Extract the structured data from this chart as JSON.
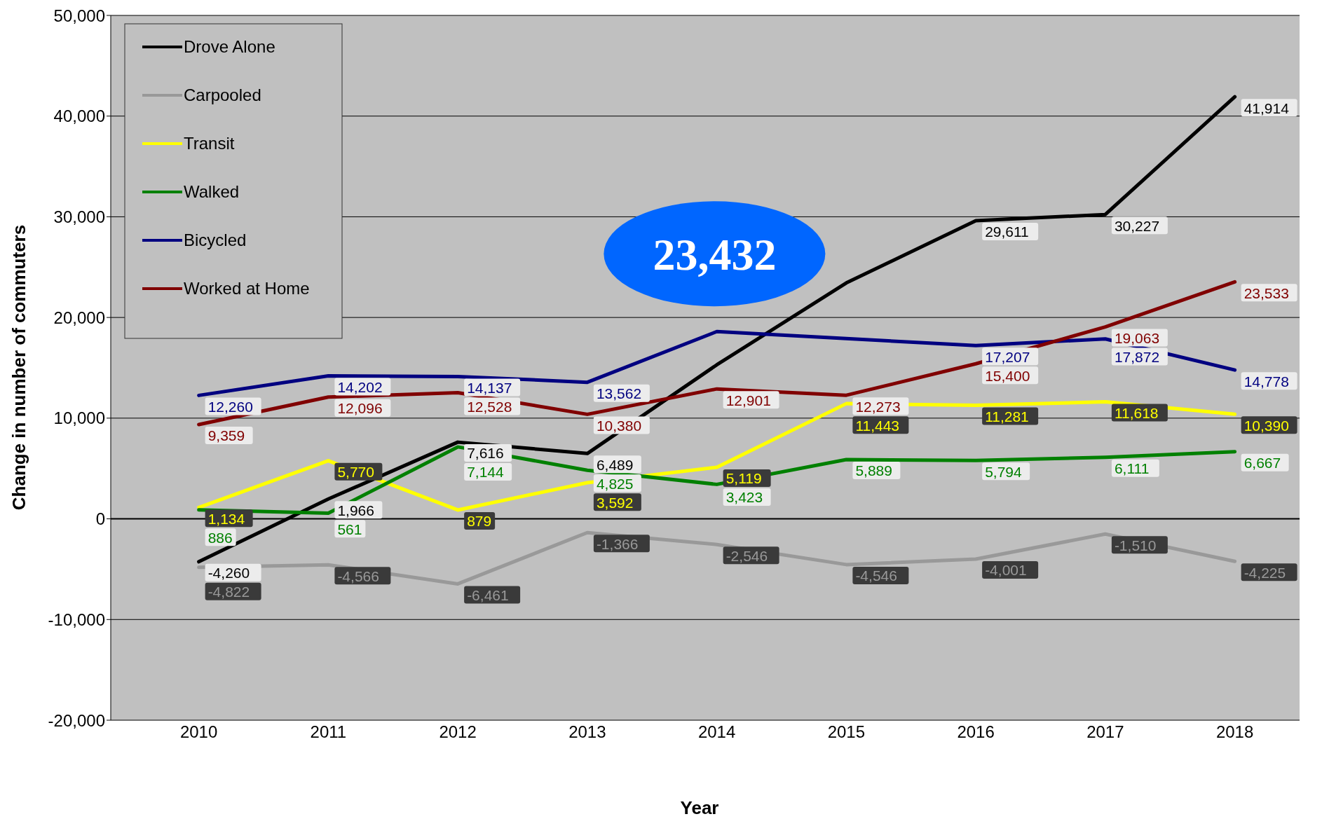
{
  "chart_data": {
    "type": "line",
    "xlabel": "Year",
    "ylabel": "Change in number of commuters",
    "categories": [
      "2010",
      "2011",
      "2012",
      "2013",
      "2014",
      "2015",
      "2016",
      "2017",
      "2018"
    ],
    "series": [
      {
        "name": "Drove Alone",
        "color": "#000000",
        "values": [
          -4260,
          1966,
          7616,
          6489,
          15300,
          23432,
          29611,
          30227,
          41914
        ],
        "value_labels": [
          "-4,260",
          "1,966",
          "7,616",
          "6,489",
          null,
          null,
          "29,611",
          "30,227",
          "41,914"
        ]
      },
      {
        "name": "Carpooled",
        "color": "#999999",
        "values": [
          -4822,
          -4566,
          -6461,
          -1366,
          -2546,
          -4546,
          -4001,
          -1510,
          -4225
        ],
        "value_labels": [
          "-4,822",
          "-4,566",
          "-6,461",
          "-1,366",
          "-2,546",
          "-4,546",
          "-4,001",
          "-1,510",
          "-4,225"
        ]
      },
      {
        "name": "Transit",
        "color": "#ffff00",
        "values": [
          1134,
          5770,
          879,
          3592,
          5119,
          11443,
          11281,
          11618,
          10390
        ],
        "value_labels": [
          "1,134",
          "5,770",
          "879",
          "3,592",
          "5,119",
          "11,443",
          "11,281",
          "11,618",
          "10,390"
        ]
      },
      {
        "name": "Walked",
        "color": "#008000",
        "values": [
          886,
          561,
          7144,
          4825,
          3423,
          5889,
          5794,
          6111,
          6667
        ],
        "value_labels": [
          "886",
          "561",
          "7,144",
          "4,825",
          "3,423",
          "5,889",
          "5,794",
          "6,111",
          "6,667"
        ]
      },
      {
        "name": "Bicycled",
        "color": "#000080",
        "values": [
          12260,
          14202,
          14137,
          13562,
          18600,
          17900,
          17207,
          17872,
          14778
        ],
        "value_labels": [
          "12,260",
          "14,202",
          "14,137",
          "13,562",
          null,
          null,
          "17,207",
          "17,872",
          "14,778"
        ]
      },
      {
        "name": "Worked at Home",
        "color": "#800000",
        "values": [
          9359,
          12096,
          12528,
          10380,
          12901,
          12273,
          15400,
          19063,
          23533
        ],
        "value_labels": [
          "9,359",
          "12,096",
          "12,528",
          "10,380",
          "12,901",
          "12,273",
          "15,400",
          "19,063",
          "23,533"
        ]
      }
    ],
    "ylim": [
      -20000,
      50000
    ],
    "yticks": [
      {
        "value": -20000,
        "label": "-20,000"
      },
      {
        "value": -10000,
        "label": "-10,000"
      },
      0,
      {
        "value": 10000,
        "label": "10,000"
      },
      {
        "value": 20000,
        "label": "20,000"
      },
      {
        "value": 30000,
        "label": "30,000"
      },
      {
        "value": 40000,
        "label": "40,000"
      },
      {
        "value": 50000,
        "label": "50,000"
      }
    ],
    "grid": "y",
    "legend": "top left",
    "marker": "none",
    "line_style": "solid",
    "annotations": [
      "23,432"
    ]
  }
}
